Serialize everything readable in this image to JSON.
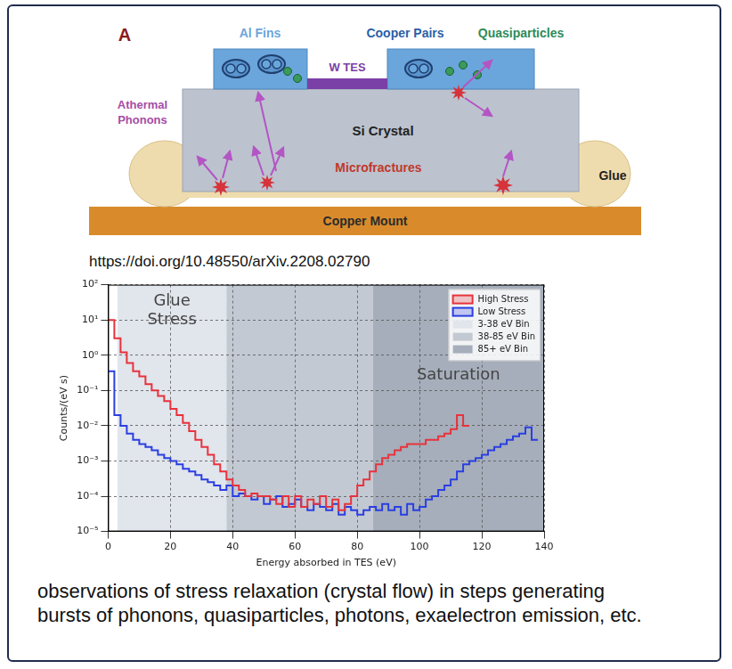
{
  "diagram": {
    "panel_label": "A",
    "labels": {
      "al_fins": "Al Fins",
      "cooper_pairs": "Cooper Pairs",
      "quasiparticles": "Quasiparticles",
      "w_tes": "W TES",
      "athermal_phonons": "Athermal Phonons",
      "si_crystal": "Si Crystal",
      "microfractures": "Microfractures",
      "glue": "Glue",
      "copper_mount": "Copper Mount"
    }
  },
  "source_url": "https://doi.org/10.48550/arXiv.2208.02790",
  "chart_data": {
    "type": "histogram",
    "x_label": "Energy absorbed in TES (eV)",
    "y_label": "Counts/(eV s)",
    "log": "y",
    "grid": true,
    "legend": "upper right",
    "xlim": [
      0,
      140
    ],
    "xticks": [
      0,
      20,
      40,
      60,
      80,
      100,
      120,
      140
    ],
    "ylim": [
      1e-05,
      100
    ],
    "yticks": [
      {
        "value": 1e-05,
        "label": "10⁻⁵"
      },
      {
        "value": 0.0001,
        "label": "10⁻⁴"
      },
      {
        "value": 0.001,
        "label": "10⁻³"
      },
      {
        "value": 0.01,
        "label": "10⁻²"
      },
      {
        "value": 0.1,
        "label": "10⁻¹"
      },
      {
        "value": 1,
        "label": "10⁰"
      },
      {
        "value": 10,
        "label": "10¹"
      },
      {
        "value": 100,
        "label": "10²"
      }
    ],
    "bins": [
      0,
      2,
      4,
      6,
      8,
      10,
      12,
      14,
      16,
      18,
      20,
      22,
      24,
      26,
      28,
      30,
      32,
      34,
      36,
      38,
      40,
      42,
      44,
      46,
      48,
      50,
      52,
      54,
      56,
      58,
      60,
      62,
      64,
      66,
      68,
      70,
      72,
      74,
      76,
      78,
      80,
      82,
      84,
      86,
      88,
      90,
      92,
      94,
      96,
      98,
      100,
      102,
      104,
      106,
      108,
      110,
      112,
      114,
      116,
      118,
      120,
      122,
      124,
      126,
      128,
      130,
      132,
      134,
      136,
      138,
      140
    ],
    "series": [
      {
        "name": "High Stress",
        "color": "#e8323c",
        "values": [
          10,
          3,
          1.2,
          0.6,
          0.35,
          0.25,
          0.15,
          0.1,
          0.07,
          0.05,
          0.03,
          0.02,
          0.012,
          0.007,
          0.004,
          0.0025,
          0.0015,
          0.0008,
          0.0005,
          0.0003,
          0.0002,
          0.00015,
          0.0001,
          0.00012,
          0.0001,
          0.0001,
          8e-05,
          6e-05,
          0.0001,
          5e-05,
          0.0001,
          5e-05,
          8e-05,
          6e-05,
          0.0001,
          5e-05,
          8e-05,
          4e-05,
          6e-05,
          0.0001,
          0.0002,
          0.0003,
          0.0005,
          0.0008,
          0.0012,
          0.0015,
          0.002,
          0.0025,
          0.003,
          0.003,
          0.003,
          0.004,
          0.004,
          0.005,
          0.006,
          0.008,
          0.02,
          0.01,
          null,
          null,
          null,
          null,
          null,
          null,
          null,
          null,
          null,
          null,
          null,
          null
        ]
      },
      {
        "name": "Low Stress",
        "color": "#2a3fe0",
        "values": [
          0.35,
          0.02,
          0.01,
          0.006,
          0.004,
          0.003,
          0.0025,
          0.002,
          0.0015,
          0.0012,
          0.001,
          0.0008,
          0.0006,
          0.0005,
          0.0004,
          0.0003,
          0.00025,
          0.0002,
          0.00015,
          0.0002,
          0.0001,
          0.00012,
          0.0001,
          8e-05,
          0.0001,
          6e-05,
          8e-05,
          0.0001,
          5e-05,
          6e-05,
          8e-05,
          5e-05,
          4e-05,
          6e-05,
          5e-05,
          4e-05,
          6e-05,
          3e-05,
          5e-05,
          4e-05,
          3e-05,
          4e-05,
          5e-05,
          4e-05,
          6e-05,
          4e-05,
          5e-05,
          3e-05,
          6e-05,
          4e-05,
          5e-05,
          8e-05,
          0.0001,
          0.00015,
          0.0002,
          0.0003,
          0.0005,
          0.0008,
          0.001,
          0.0012,
          0.0015,
          0.002,
          0.0025,
          0.003,
          0.004,
          0.005,
          0.006,
          0.009,
          0.004,
          null
        ]
      }
    ],
    "bands": [
      {
        "name": "3-38 eV Bin",
        "range": [
          3,
          38
        ],
        "color": "#e1e5ec"
      },
      {
        "name": "38-85 eV Bin",
        "range": [
          38,
          85
        ],
        "color": "#c3c9d3"
      },
      {
        "name": "85+ eV Bin",
        "range": [
          85,
          140
        ],
        "color": "#a6aebb"
      }
    ],
    "annotations": [
      "Glue Stress",
      "Saturation"
    ]
  },
  "caption": "observations of stress relaxation (crystal flow) in steps generating bursts of phonons, quasiparticles, photons, exaelectron emission, etc."
}
